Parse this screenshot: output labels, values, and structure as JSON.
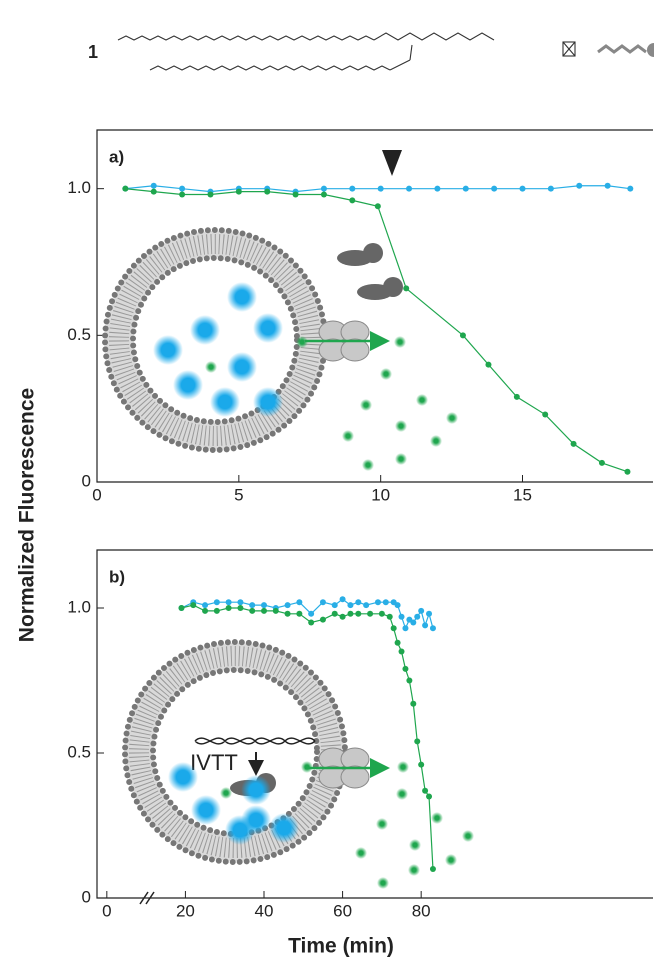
{
  "figure": {
    "compound_label": "1",
    "ylabel": "Normalized Fluorescence",
    "xlabel": "Time (min)"
  },
  "chart_data": [
    {
      "type": "line",
      "label": "a)",
      "xlim": [
        0,
        19.6
      ],
      "ylim": [
        0,
        1.2
      ],
      "xticks": [
        0,
        5,
        10,
        15
      ],
      "yticks": [
        0,
        0.5,
        {
          "value": 1,
          "label": "1.0"
        }
      ],
      "series": [
        {
          "color": "#29aee6",
          "x": [
            1,
            2,
            3,
            4,
            5,
            6,
            7,
            8,
            9,
            10,
            11,
            12,
            13,
            14,
            15,
            16,
            17,
            18,
            18.8
          ],
          "values": [
            1.0,
            1.01,
            1.0,
            0.99,
            1.0,
            1.0,
            0.99,
            1.0,
            1.0,
            1.0,
            1.0,
            1.0,
            1.0,
            1.0,
            1.0,
            1.0,
            1.01,
            1.01,
            1.0
          ]
        },
        {
          "color": "#1fa64e",
          "x": [
            1,
            2,
            3,
            4,
            5,
            6,
            7,
            8,
            9,
            9.9,
            10.9,
            12.9,
            13.8,
            14.8,
            15.8,
            16.8,
            17.8,
            18.7
          ],
          "values": [
            1.0,
            0.99,
            0.98,
            0.98,
            0.99,
            0.99,
            0.98,
            0.98,
            0.96,
            0.94,
            0.66,
            0.5,
            0.4,
            0.29,
            0.23,
            0.13,
            0.065,
            0.035
          ]
        }
      ]
    },
    {
      "type": "line",
      "label": "b)",
      "annotation": "IVTT",
      "xlim": [
        -2.5,
        139
      ],
      "ylim": [
        0,
        1.2
      ],
      "xticks": [
        0,
        20,
        40,
        60,
        80
      ],
      "yticks": [
        0,
        0.5,
        {
          "value": 1,
          "label": "1.0"
        }
      ],
      "series": [
        {
          "color": "#29aee6",
          "x": [
            19,
            22,
            25,
            28,
            31,
            34,
            37,
            40,
            43,
            46,
            49,
            52,
            55,
            58,
            60,
            62,
            64,
            66,
            69,
            71,
            73,
            74,
            75,
            76,
            77,
            78,
            79,
            80,
            81,
            82,
            83
          ],
          "values": [
            1.0,
            1.02,
            1.01,
            1.02,
            1.02,
            1.02,
            1.01,
            1.01,
            1.0,
            1.01,
            1.02,
            0.98,
            1.02,
            1.01,
            1.03,
            1.01,
            1.02,
            1.01,
            1.02,
            1.02,
            1.02,
            1.01,
            0.97,
            0.93,
            0.96,
            0.95,
            0.97,
            0.99,
            0.94,
            0.98,
            0.93
          ]
        },
        {
          "color": "#1fa64e",
          "x": [
            19,
            22,
            25,
            28,
            31,
            34,
            37,
            40,
            43,
            46,
            49,
            52,
            55,
            58,
            60,
            62,
            64,
            67,
            70,
            72,
            73,
            74,
            75,
            76,
            77,
            78,
            79,
            80,
            81,
            82,
            83
          ],
          "values": [
            1.0,
            1.01,
            0.99,
            0.99,
            1.0,
            1.0,
            0.99,
            0.99,
            0.99,
            0.98,
            0.98,
            0.95,
            0.96,
            0.98,
            0.97,
            0.98,
            0.98,
            0.98,
            0.98,
            0.97,
            0.93,
            0.88,
            0.85,
            0.79,
            0.75,
            0.67,
            0.54,
            0.46,
            0.37,
            0.35,
            0.1
          ]
        }
      ]
    }
  ]
}
